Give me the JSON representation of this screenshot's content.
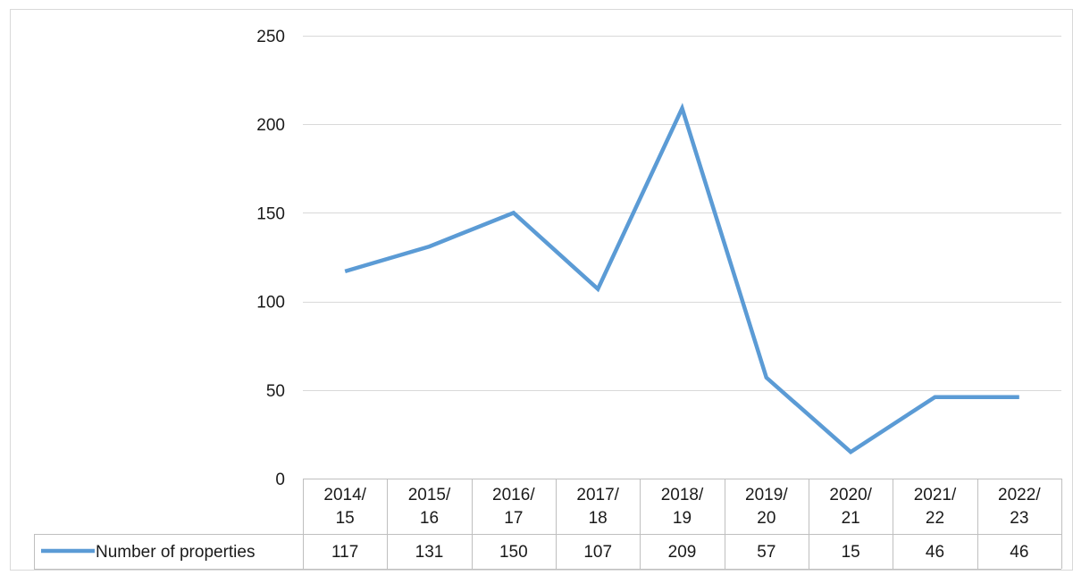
{
  "chart_data": {
    "type": "line",
    "categories": [
      [
        "2014/",
        "15"
      ],
      [
        "2015/",
        "16"
      ],
      [
        "2016/",
        "17"
      ],
      [
        "2017/",
        "18"
      ],
      [
        "2018/",
        "19"
      ],
      [
        "2019/",
        "20"
      ],
      [
        "2020/",
        "21"
      ],
      [
        "2021/",
        "22"
      ],
      [
        "2022/",
        "23"
      ]
    ],
    "series": [
      {
        "name": "Number of properties",
        "values": [
          117,
          131,
          150,
          107,
          209,
          57,
          15,
          46,
          46
        ],
        "color": "#5b9bd5"
      }
    ],
    "ylim": [
      0,
      250
    ],
    "yticks": [
      0,
      50,
      100,
      150,
      200,
      250
    ],
    "grid": true,
    "data_table": true,
    "legend": "data-table-left",
    "colors": {
      "grid": "#d9d9d9",
      "table_border": "#bfbfbf",
      "frame": "#d9d9d9"
    }
  }
}
